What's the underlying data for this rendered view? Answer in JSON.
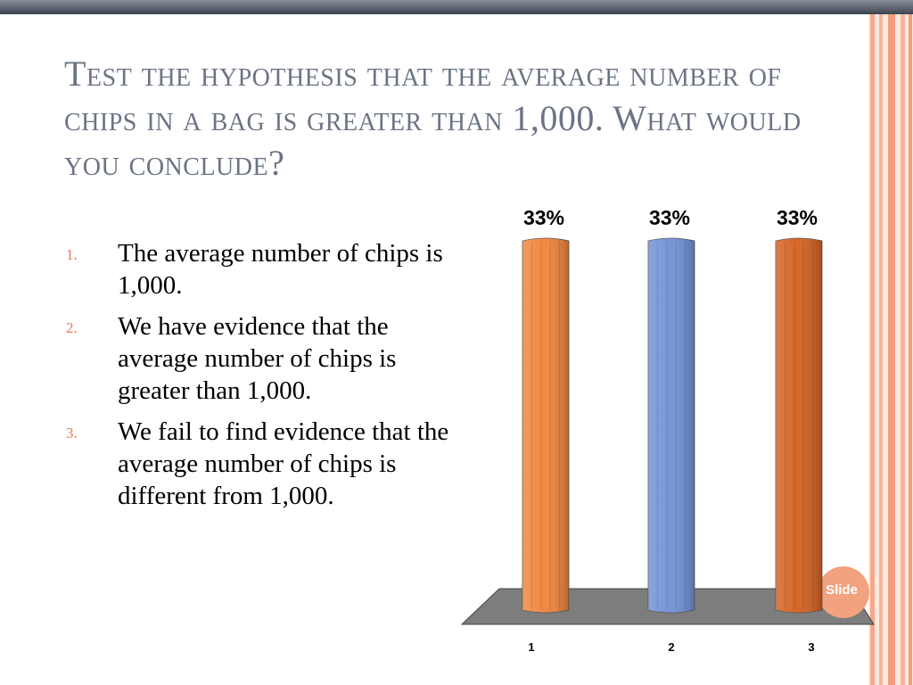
{
  "slide": {
    "title": "Test the hypothesis that the average number of chips in a bag is greater than 1,000. What would you conclude?",
    "options": [
      {
        "num": "1.",
        "text": "The average number of chips is 1,000."
      },
      {
        "num": "2.",
        "text": "We have evidence that the average number of chips is greater than 1,000."
      },
      {
        "num": "3.",
        "text": "We fail to find evidence that the average number of chips is different from 1,000."
      }
    ],
    "badge_text": "Slide"
  },
  "chart_data": {
    "type": "bar",
    "categories": [
      "1",
      "2",
      "3"
    ],
    "values": [
      33,
      33,
      33
    ],
    "value_labels": [
      "33%",
      "33%",
      "33%"
    ],
    "colors": [
      "#f0833a",
      "#6f91d4",
      "#d4601f"
    ],
    "ylim": [
      0,
      33
    ],
    "grid": false,
    "legend": "none"
  }
}
